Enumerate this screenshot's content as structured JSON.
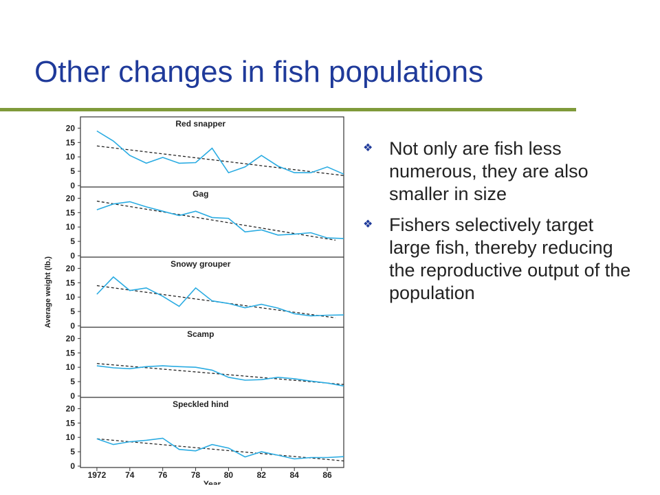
{
  "slide": {
    "title": "Other changes in fish populations",
    "accent_color": "#1f3a9a",
    "rule_color": "#7f9a3a"
  },
  "bullets": [
    {
      "icon": "diamond-bullet-icon",
      "text": "Not only are fish less numerous, they are also smaller in size"
    },
    {
      "icon": "diamond-bullet-icon",
      "text": "Fishers selectively target large fish, thereby reducing the reproductive output of the population"
    }
  ],
  "chart_data": {
    "type": "line",
    "xlabel": "Year",
    "ylabel": "Average weight (lb.)",
    "xlim": [
      1971,
      1987
    ],
    "ylim": [
      0,
      22
    ],
    "yticks": [
      0,
      5,
      10,
      15,
      20
    ],
    "xticks": [
      1972,
      1974,
      1976,
      1978,
      1980,
      1982,
      1984,
      1986
    ],
    "xtick_labels": [
      "1972",
      "74",
      "76",
      "78",
      "80",
      "82",
      "84",
      "86"
    ],
    "line_color": "#29abe2",
    "trend_color": "#222222",
    "panels": [
      {
        "name": "Red snapper",
        "x": [
          1972,
          1973,
          1974,
          1975,
          1976,
          1977,
          1978,
          1979,
          1980,
          1981,
          1982,
          1983,
          1984,
          1985,
          1986,
          1987
        ],
        "values": [
          19,
          15.5,
          10.5,
          7.8,
          9.8,
          7.8,
          8,
          13,
          4.5,
          6.5,
          10.5,
          6.8,
          4.5,
          4.5,
          6.5,
          4
        ],
        "trend": [
          [
            1972,
            13.8
          ],
          [
            1987,
            3.5
          ]
        ]
      },
      {
        "name": "Gag",
        "x": [
          1972,
          1973,
          1974,
          1975,
          1976,
          1977,
          1978,
          1979,
          1980,
          1981,
          1982,
          1983,
          1984,
          1985,
          1986,
          1987
        ],
        "values": [
          16,
          18,
          18.8,
          17,
          15.5,
          14,
          15.5,
          13.3,
          13,
          8.3,
          9,
          7.2,
          7.5,
          8,
          6.2,
          6
        ],
        "trend": [
          [
            1972,
            19
          ],
          [
            1986.5,
            5.4
          ]
        ]
      },
      {
        "name": "Snowy grouper",
        "x": [
          1972,
          1973,
          1974,
          1975,
          1976,
          1977,
          1978,
          1979,
          1980,
          1981,
          1982,
          1983,
          1984,
          1985,
          1986,
          1987
        ],
        "values": [
          11,
          17,
          12.3,
          13.2,
          10.3,
          6.8,
          13.2,
          8.7,
          7.8,
          6.3,
          7.5,
          6.2,
          4.2,
          3.5,
          3.7,
          3.8
        ],
        "trend": [
          [
            1972,
            14
          ],
          [
            1986.5,
            2.8
          ]
        ]
      },
      {
        "name": "Scamp",
        "x": [
          1972,
          1973,
          1974,
          1975,
          1976,
          1977,
          1978,
          1979,
          1980,
          1981,
          1982,
          1983,
          1984,
          1985,
          1986,
          1987
        ],
        "values": [
          10.5,
          9.8,
          9.5,
          10.2,
          10.5,
          10.2,
          10,
          9,
          6.5,
          5.5,
          5.7,
          6.5,
          6,
          5.2,
          4.5,
          3.5
        ],
        "trend": [
          [
            1972,
            11.3
          ],
          [
            1987,
            4
          ]
        ]
      },
      {
        "name": "Speckled hind",
        "x": [
          1972,
          1973,
          1974,
          1975,
          1976,
          1977,
          1978,
          1979,
          1980,
          1981,
          1982,
          1983,
          1984,
          1985,
          1986,
          1987
        ],
        "values": [
          9.5,
          7.5,
          8.5,
          9,
          9.7,
          5.8,
          5.3,
          7.5,
          6.3,
          3.2,
          5,
          3.8,
          2.5,
          3,
          3,
          3.3
        ],
        "trend": [
          [
            1972,
            9.5
          ],
          [
            1987,
            1.8
          ]
        ]
      }
    ]
  }
}
